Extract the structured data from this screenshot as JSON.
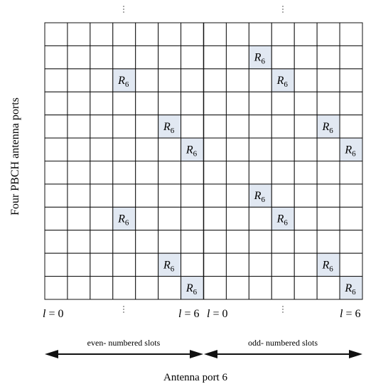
{
  "diagram": {
    "y_axis_label": "Four PBCH antenna ports",
    "grid": {
      "rows": 12,
      "cols": 14
    },
    "rs_label": {
      "base": "R",
      "sub": "6"
    },
    "rs_cells": [
      {
        "row": 1,
        "col": 9
      },
      {
        "row": 2,
        "col": 3
      },
      {
        "row": 2,
        "col": 10
      },
      {
        "row": 4,
        "col": 5
      },
      {
        "row": 4,
        "col": 12
      },
      {
        "row": 5,
        "col": 6
      },
      {
        "row": 5,
        "col": 13
      },
      {
        "row": 7,
        "col": 9
      },
      {
        "row": 8,
        "col": 3
      },
      {
        "row": 8,
        "col": 10
      },
      {
        "row": 10,
        "col": 5
      },
      {
        "row": 10,
        "col": 12
      },
      {
        "row": 11,
        "col": 6
      },
      {
        "row": 11,
        "col": 13
      }
    ],
    "symbol_labels": [
      {
        "var": "l",
        "text": " = 0"
      },
      {
        "var": "l",
        "text": " = 6"
      },
      {
        "var": "l",
        "text": " = 0"
      },
      {
        "var": "l",
        "text": " = 6"
      }
    ],
    "slots": [
      {
        "label": "even- numbered slots"
      },
      {
        "label": "odd- numbered slots"
      }
    ],
    "caption": "Antenna port 6"
  }
}
